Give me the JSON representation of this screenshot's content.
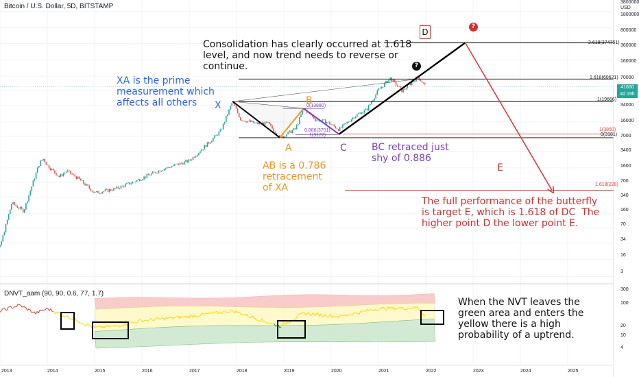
{
  "header": {
    "title": "Bitcoin / U.S. Dollar, 5D, BITSTAMP",
    "currency": "USD"
  },
  "indicator": {
    "title": "DNVT_aam (90, 90, 0.6, 77, 1.7)"
  },
  "price_tag": {
    "price": "41660",
    "time": "4d 19h"
  },
  "points": {
    "X": "X",
    "A": "A",
    "B": "B",
    "C": "C",
    "D": "D",
    "E": "E"
  },
  "annotations": {
    "consolidation": "Consolidation has clearly occurred at 1.618\nlevel, and now trend needs to reverse or\ncontinue.",
    "xa": "XA is the prime\nmeasurement which\naffects all others",
    "ab": "AB is a 0.786\nretracement\nof XA",
    "bc": "BC retraced just\nshy of 0.886",
    "target": "The full performance of the butterfly\nis target E, which is 1.618 of DC  The\nhigher point D the lower point E.",
    "nvt": "When the NVT leaves the\ngreen area and enters the\nyellow there is a high\nprobability of a uptrend."
  },
  "icons": {
    "question_red": "question-circle-icon",
    "question_black": "question-circle-icon"
  },
  "colors": {
    "price_up": "#26a69a",
    "price_down": "#ef5350",
    "pattern": "#000000",
    "projection": "#e53935",
    "ab_leg": "#f7931a",
    "bc_leg": "#7b3fbf",
    "nvt_line_red": "#e53935",
    "nvt_line_yellow": "#ffd600",
    "nvt_line_green": "#2e7d32",
    "band_red": "#f8bbbb",
    "band_yellow": "#fff9c4",
    "band_green": "#c8e6c9",
    "highlight_box": "#000000"
  },
  "chart_data": [
    {
      "type": "candlestick",
      "title": "Bitcoin / U.S. Dollar, 5D, BITSTAMP",
      "y_scale": "log",
      "y_unit": "USD",
      "y_ticks": [
        3,
        7,
        16,
        34,
        70,
        160,
        340,
        700,
        1600,
        3400,
        7000,
        16000,
        34000,
        70000,
        160000,
        360000,
        800000,
        1800000,
        3800000
      ],
      "x_ticks": [
        "2013",
        "2014",
        "2015",
        "2016",
        "2017",
        "2018",
        "2019",
        "2020",
        "2021",
        "2022",
        "2023",
        "2024",
        "2025"
      ],
      "series": [
        {
          "name": "BTCUSD",
          "points": [
            {
              "x": "2012-09",
              "y": 10
            },
            {
              "x": "2013-01",
              "y": 13
            },
            {
              "x": "2013-04",
              "y": 120
            },
            {
              "x": "2013-07",
              "y": 80
            },
            {
              "x": "2013-11",
              "y": 900
            },
            {
              "x": "2013-12",
              "y": 1100
            },
            {
              "x": "2014-01",
              "y": 800
            },
            {
              "x": "2014-04",
              "y": 450
            },
            {
              "x": "2014-06",
              "y": 600
            },
            {
              "x": "2014-09",
              "y": 400
            },
            {
              "x": "2015-01",
              "y": 200
            },
            {
              "x": "2015-06",
              "y": 240
            },
            {
              "x": "2015-11",
              "y": 350
            },
            {
              "x": "2016-06",
              "y": 650
            },
            {
              "x": "2017-01",
              "y": 1000
            },
            {
              "x": "2017-06",
              "y": 2500
            },
            {
              "x": "2017-09",
              "y": 4500
            },
            {
              "x": "2017-12",
              "y": 19666
            },
            {
              "x": "2018-02",
              "y": 8000
            },
            {
              "x": "2018-06",
              "y": 6500
            },
            {
              "x": "2018-09",
              "y": 6500
            },
            {
              "x": "2018-12",
              "y": 3181
            },
            {
              "x": "2019-04",
              "y": 5000
            },
            {
              "x": "2019-06",
              "y": 13880
            },
            {
              "x": "2019-09",
              "y": 8000
            },
            {
              "x": "2019-12",
              "y": 7000
            },
            {
              "x": "2020-03",
              "y": 4800
            },
            {
              "x": "2020-07",
              "y": 9500
            },
            {
              "x": "2020-10",
              "y": 13000
            },
            {
              "x": "2021-01",
              "y": 35000
            },
            {
              "x": "2021-04",
              "y": 63000
            },
            {
              "x": "2021-07",
              "y": 33000
            },
            {
              "x": "2021-11",
              "y": 67000
            },
            {
              "x": "2022-01",
              "y": 41660
            }
          ]
        }
      ],
      "pattern": {
        "name": "butterfly",
        "points": [
          {
            "label": "X",
            "x": "2017-12",
            "y": 19666
          },
          {
            "label": "A",
            "x": "2018-12",
            "y": 3181
          },
          {
            "label": "B",
            "x": "2019-06",
            "y": 13880
          },
          {
            "label": "C",
            "x": "2020-03",
            "y": 3800
          },
          {
            "label": "D",
            "x": "2022-11",
            "y": 374751
          },
          {
            "label": "E",
            "x": "2024-09",
            "y": 228
          }
        ]
      },
      "fib_levels": [
        {
          "label": "2.618(374751)",
          "value": 374751
        },
        {
          "label": "1.618(60621)",
          "value": 60621
        },
        {
          "label": "1(19666)",
          "value": 19666
        },
        {
          "label": "1(3850)",
          "value": 3850
        },
        {
          "label": "0(3181)",
          "value": 3181
        },
        {
          "label": "1.618(228)",
          "value": 228
        }
      ],
      "leg_labels": [
        {
          "label": "0(13880)",
          "value": 13880
        },
        {
          "label": "0.886(3701)",
          "value": 3701
        },
        {
          "label": "1(3122)",
          "value": 3122
        }
      ]
    },
    {
      "type": "line",
      "title": "DNVT_aam (90, 90, 0.6, 77, 1.7)",
      "y_scale": "log",
      "y_ticks": [
        4,
        10,
        20,
        100,
        300
      ],
      "series": [
        {
          "name": "DNVT",
          "points": [
            {
              "x": "2013-01",
              "y": 60
            },
            {
              "x": "2013-06",
              "y": 90
            },
            {
              "x": "2013-10",
              "y": 50
            },
            {
              "x": "2014-01",
              "y": 70
            },
            {
              "x": "2014-06",
              "y": 40
            },
            {
              "x": "2015-01",
              "y": 18
            },
            {
              "x": "2015-06",
              "y": 20
            },
            {
              "x": "2016-01",
              "y": 30
            },
            {
              "x": "2017-01",
              "y": 40
            },
            {
              "x": "2017-12",
              "y": 60
            },
            {
              "x": "2018-06",
              "y": 35
            },
            {
              "x": "2018-12",
              "y": 20
            },
            {
              "x": "2019-06",
              "y": 50
            },
            {
              "x": "2020-03",
              "y": 40
            },
            {
              "x": "2021-01",
              "y": 70
            },
            {
              "x": "2021-11",
              "y": 75
            },
            {
              "x": "2022-01",
              "y": 40
            }
          ]
        }
      ]
    }
  ]
}
